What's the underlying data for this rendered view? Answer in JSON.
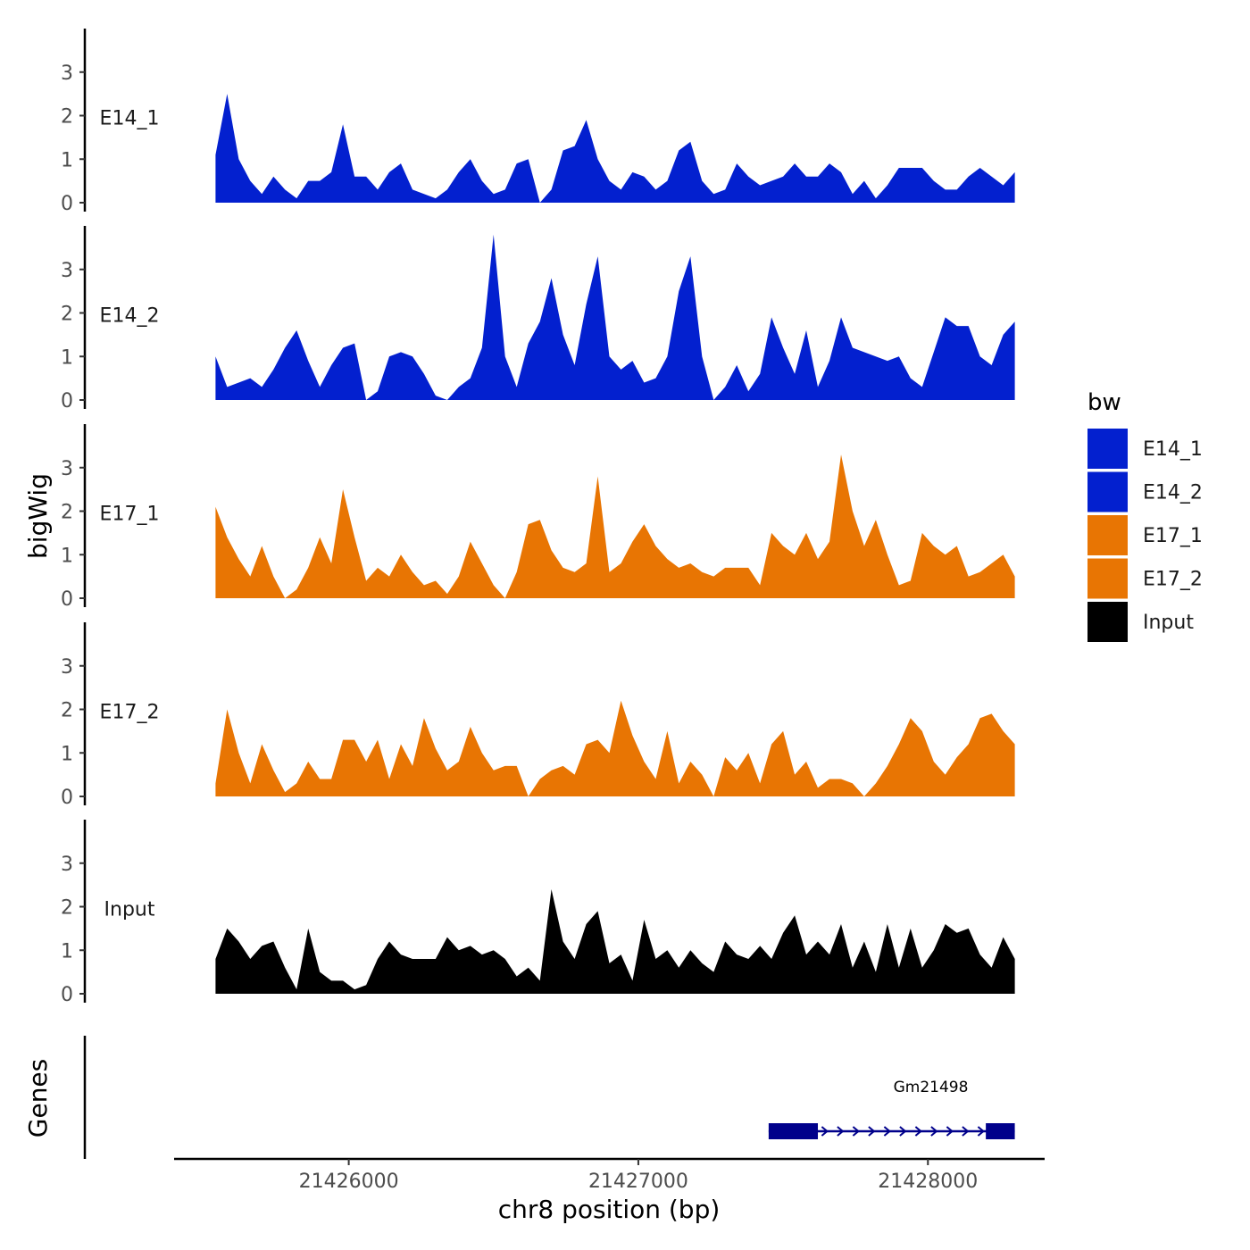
{
  "chart_data": {
    "type": "area",
    "title": "",
    "ylabel": "bigWig",
    "xlabel": "chr8 position (bp)",
    "xlim": [
      21425400,
      21428400
    ],
    "ylim": [
      0,
      4
    ],
    "x_ticks": [
      21426000,
      21427000,
      21428000
    ],
    "x_tick_labels": [
      "21426000",
      "21427000",
      "21428000"
    ],
    "y_ticks": [
      0,
      1,
      2,
      3
    ],
    "y_tick_labels": [
      "0",
      "1",
      "2",
      "3"
    ],
    "legend": {
      "title": "bw",
      "position": "right",
      "entries": [
        {
          "label": "E14_1",
          "color": "#0320cf"
        },
        {
          "label": "E14_2",
          "color": "#0320cf"
        },
        {
          "label": "E17_1",
          "color": "#e87503"
        },
        {
          "label": "E17_2",
          "color": "#e87503"
        },
        {
          "label": "Input",
          "color": "#000000"
        }
      ]
    },
    "x": [
      21425540,
      21425580,
      21425620,
      21425660,
      21425700,
      21425740,
      21425780,
      21425820,
      21425860,
      21425900,
      21425940,
      21425980,
      21426020,
      21426060,
      21426100,
      21426140,
      21426180,
      21426220,
      21426260,
      21426300,
      21426340,
      21426380,
      21426420,
      21426460,
      21426500,
      21426540,
      21426580,
      21426620,
      21426660,
      21426700,
      21426740,
      21426780,
      21426820,
      21426860,
      21426900,
      21426940,
      21426980,
      21427020,
      21427060,
      21427100,
      21427140,
      21427180,
      21427220,
      21427260,
      21427300,
      21427340,
      21427380,
      21427420,
      21427460,
      21427500,
      21427540,
      21427580,
      21427620,
      21427660,
      21427700,
      21427740,
      21427780,
      21427820,
      21427860,
      21427900,
      21427940,
      21427980,
      21428020,
      21428060,
      21428100,
      21428140,
      21428180,
      21428220,
      21428260,
      21428300
    ],
    "series": [
      {
        "name": "E14_1",
        "color": "#0320cf",
        "values": [
          1.1,
          2.5,
          1.0,
          0.5,
          0.2,
          0.6,
          0.3,
          0.1,
          0.5,
          0.5,
          0.7,
          1.8,
          0.6,
          0.6,
          0.3,
          0.7,
          0.9,
          0.3,
          0.2,
          0.1,
          0.3,
          0.7,
          1.0,
          0.5,
          0.2,
          0.3,
          0.9,
          1.0,
          0.0,
          0.3,
          1.2,
          1.3,
          1.9,
          1.0,
          0.5,
          0.3,
          0.7,
          0.6,
          0.3,
          0.5,
          1.2,
          1.4,
          0.5,
          0.2,
          0.3,
          0.9,
          0.6,
          0.4,
          0.5,
          0.6,
          0.9,
          0.6,
          0.6,
          0.9,
          0.7,
          0.2,
          0.5,
          0.1,
          0.4,
          0.8,
          0.8,
          0.8,
          0.5,
          0.3,
          0.3,
          0.6,
          0.8,
          0.6,
          0.4,
          0.7
        ]
      },
      {
        "name": "E14_2",
        "color": "#0320cf",
        "values": [
          1.0,
          0.3,
          0.4,
          0.5,
          0.3,
          0.7,
          1.2,
          1.6,
          0.9,
          0.3,
          0.8,
          1.2,
          1.3,
          0.0,
          0.2,
          1.0,
          1.1,
          1.0,
          0.6,
          0.1,
          0.0,
          0.3,
          0.5,
          1.2,
          3.8,
          1.0,
          0.3,
          1.3,
          1.8,
          2.8,
          1.5,
          0.8,
          2.2,
          3.3,
          1.0,
          0.7,
          0.9,
          0.4,
          0.5,
          1.0,
          2.5,
          3.3,
          1.0,
          0.0,
          0.3,
          0.8,
          0.2,
          0.6,
          1.9,
          1.2,
          0.6,
          1.6,
          0.3,
          0.9,
          1.9,
          1.2,
          1.1,
          1.0,
          0.9,
          1.0,
          0.5,
          0.3,
          1.1,
          1.9,
          1.7,
          1.7,
          1.0,
          0.8,
          1.5,
          1.8
        ]
      },
      {
        "name": "E17_1",
        "color": "#e87503",
        "values": [
          2.1,
          1.4,
          0.9,
          0.5,
          1.2,
          0.5,
          0.0,
          0.2,
          0.7,
          1.4,
          0.8,
          2.5,
          1.4,
          0.4,
          0.7,
          0.5,
          1.0,
          0.6,
          0.3,
          0.4,
          0.1,
          0.5,
          1.3,
          0.8,
          0.3,
          0.0,
          0.6,
          1.7,
          1.8,
          1.1,
          0.7,
          0.6,
          0.8,
          2.8,
          0.6,
          0.8,
          1.3,
          1.7,
          1.2,
          0.9,
          0.7,
          0.8,
          0.6,
          0.5,
          0.7,
          0.7,
          0.7,
          0.3,
          1.5,
          1.2,
          1.0,
          1.5,
          0.9,
          1.3,
          3.3,
          2.0,
          1.2,
          1.8,
          1.0,
          0.3,
          0.4,
          1.5,
          1.2,
          1.0,
          1.2,
          0.5,
          0.6,
          0.8,
          1.0,
          0.5
        ]
      },
      {
        "name": "E17_2",
        "color": "#e87503",
        "values": [
          0.3,
          2.0,
          1.0,
          0.3,
          1.2,
          0.6,
          0.1,
          0.3,
          0.8,
          0.4,
          0.4,
          1.3,
          1.3,
          0.8,
          1.3,
          0.4,
          1.2,
          0.7,
          1.8,
          1.1,
          0.6,
          0.8,
          1.6,
          1.0,
          0.6,
          0.7,
          0.7,
          0.0,
          0.4,
          0.6,
          0.7,
          0.5,
          1.2,
          1.3,
          1.0,
          2.2,
          1.4,
          0.8,
          0.4,
          1.5,
          0.3,
          0.8,
          0.5,
          0.0,
          0.9,
          0.6,
          1.0,
          0.3,
          1.2,
          1.5,
          0.5,
          0.8,
          0.2,
          0.4,
          0.4,
          0.3,
          0.0,
          0.3,
          0.7,
          1.2,
          1.8,
          1.5,
          0.8,
          0.5,
          0.9,
          1.2,
          1.8,
          1.9,
          1.5,
          1.2
        ]
      },
      {
        "name": "Input",
        "color": "#000000",
        "values": [
          0.8,
          1.5,
          1.2,
          0.8,
          1.1,
          1.2,
          0.6,
          0.1,
          1.5,
          0.5,
          0.3,
          0.3,
          0.1,
          0.2,
          0.8,
          1.2,
          0.9,
          0.8,
          0.8,
          0.8,
          1.3,
          1.0,
          1.1,
          0.9,
          1.0,
          0.8,
          0.4,
          0.6,
          0.3,
          2.4,
          1.2,
          0.8,
          1.6,
          1.9,
          0.7,
          0.9,
          0.3,
          1.7,
          0.8,
          1.0,
          0.6,
          1.0,
          0.7,
          0.5,
          1.2,
          0.9,
          0.8,
          1.1,
          0.8,
          1.4,
          1.8,
          0.9,
          1.2,
          0.9,
          1.6,
          0.6,
          1.2,
          0.5,
          1.6,
          0.6,
          1.5,
          0.6,
          1.0,
          1.6,
          1.4,
          1.5,
          0.9,
          0.6,
          1.3,
          0.8
        ]
      }
    ],
    "genes": [
      {
        "name": "Gm21498",
        "strand": "+",
        "start": 21427450,
        "end": 21428300,
        "exons": [
          [
            21427450,
            21427620
          ],
          [
            21428200,
            21428300
          ]
        ],
        "color": "#00008b"
      }
    ],
    "gene_track_label": "Genes"
  }
}
